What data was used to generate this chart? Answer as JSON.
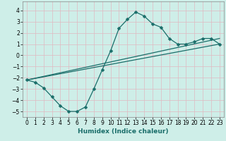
{
  "xlabel": "Humidex (Indice chaleur)",
  "xlim": [
    -0.5,
    23.5
  ],
  "ylim": [
    -5.5,
    4.8
  ],
  "xticks": [
    0,
    1,
    2,
    3,
    4,
    5,
    6,
    7,
    8,
    9,
    10,
    11,
    12,
    13,
    14,
    15,
    16,
    17,
    18,
    19,
    20,
    21,
    22,
    23
  ],
  "yticks": [
    -5,
    -4,
    -3,
    -2,
    -1,
    0,
    1,
    2,
    3,
    4
  ],
  "bg_color": "#ceeee8",
  "grid_color": "#e0b8c0",
  "line_color": "#1a6e6a",
  "curve1_x": [
    0,
    1,
    2,
    3,
    4,
    5,
    6,
    7,
    8,
    9,
    10,
    11,
    12,
    13,
    14,
    15,
    16,
    17,
    18,
    19,
    20,
    21,
    22,
    23
  ],
  "curve1_y": [
    -2.2,
    -2.4,
    -2.9,
    -3.7,
    -4.5,
    -5.0,
    -5.0,
    -4.6,
    -3.0,
    -1.3,
    0.4,
    2.4,
    3.2,
    3.85,
    3.5,
    2.8,
    2.5,
    1.5,
    1.0,
    1.0,
    1.2,
    1.5,
    1.5,
    1.0
  ],
  "curve2_x": [
    0,
    23
  ],
  "curve2_y": [
    -2.2,
    1.0
  ],
  "curve3_x": [
    0,
    23
  ],
  "curve3_y": [
    -2.2,
    1.5
  ],
  "marker": "D",
  "marker_size": 2.5,
  "linewidth": 0.9,
  "tick_fontsize": 5.5,
  "label_fontsize": 6.5
}
